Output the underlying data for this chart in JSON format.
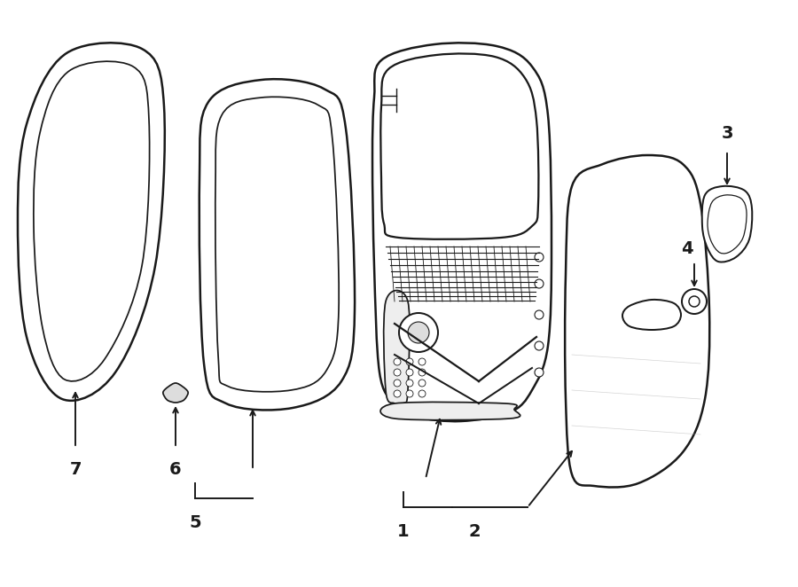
{
  "background_color": "#ffffff",
  "line_color": "#1a1a1a",
  "line_width": 1.8,
  "figsize": [
    9.0,
    6.62
  ],
  "dpi": 100
}
